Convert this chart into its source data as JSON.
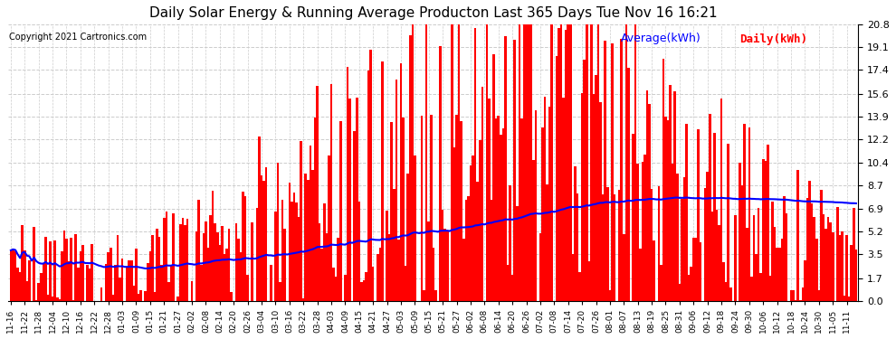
{
  "title": "Daily Solar Energy & Running Average Producton Last 365 Days Tue Nov 16 16:21",
  "copyright": "Copyright 2021 Cartronics.com",
  "ylabel_right": "",
  "yticks": [
    0.0,
    1.7,
    3.5,
    5.2,
    6.9,
    8.7,
    10.4,
    12.2,
    13.9,
    15.6,
    17.4,
    19.1,
    20.8
  ],
  "ymax": 20.8,
  "bar_color": "#ff0000",
  "avg_color": "#0000ff",
  "background_color": "#ffffff",
  "plot_bg_color": "#ffffff",
  "grid_color": "#cccccc",
  "title_color": "#000000",
  "legend_avg_color": "#0000ff",
  "legend_daily_color": "#ff0000",
  "legend_avg_label": "Average(kWh)",
  "legend_daily_label": "Daily(kWh)"
}
